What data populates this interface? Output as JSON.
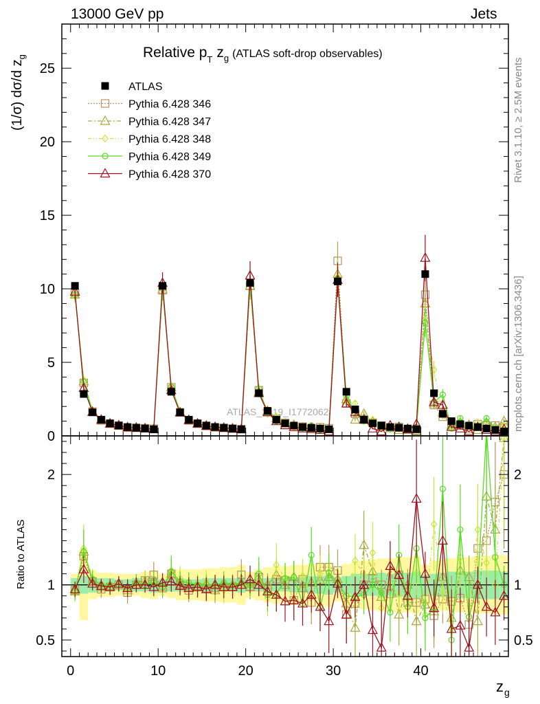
{
  "header": {
    "left": "13000 GeV pp",
    "right": "Jets"
  },
  "side_text": {
    "rivet": "Rivet 3.1.10, ≥ 2.5M events",
    "mcplots": "mcplots.cern.ch [arXiv:1306.3436]"
  },
  "chart_data": [
    {
      "type": "scatter",
      "panel": "main",
      "title_main": "Relative p",
      "title_sub": "T",
      "title_var": "z",
      "title_var_sub": "g",
      "title_rest": "(ATLAS soft-drop observables)",
      "ylabel": "(1/σ) dσ/d z",
      "ylabel_sub": "g",
      "watermark": "ATLAS_2019_I1772062",
      "xlim": [
        -1,
        50
      ],
      "ylim": [
        0,
        28
      ],
      "xticks": [
        "0",
        "10",
        "20",
        "30",
        "40"
      ],
      "yticks": [
        "0",
        "5",
        "10",
        "15",
        "20",
        "25"
      ],
      "legend_position": "top-left",
      "x": [
        0.5,
        1.5,
        2.5,
        3.5,
        4.5,
        5.5,
        6.5,
        7.5,
        8.5,
        9.5,
        10.5,
        11.5,
        12.5,
        13.5,
        14.5,
        15.5,
        16.5,
        17.5,
        18.5,
        19.5,
        20.5,
        21.5,
        22.5,
        23.5,
        24.5,
        25.5,
        26.5,
        27.5,
        28.5,
        29.5,
        30.5,
        31.5,
        32.5,
        33.5,
        34.5,
        35.5,
        36.5,
        37.5,
        38.5,
        39.5,
        40.5,
        41.5,
        42.5,
        43.5,
        44.5,
        45.5,
        46.5,
        47.5,
        48.5,
        49.5
      ],
      "series": [
        {
          "name": "ATLAS",
          "color": "#000000",
          "marker": "square-filled",
          "values": [
            10.2,
            2.85,
            1.6,
            1.1,
            0.85,
            0.7,
            0.6,
            0.55,
            0.5,
            0.45,
            10.2,
            3.0,
            1.6,
            1.1,
            0.85,
            0.7,
            0.6,
            0.55,
            0.5,
            0.45,
            10.4,
            2.9,
            1.7,
            1.1,
            0.85,
            0.7,
            0.6,
            0.55,
            0.5,
            0.45,
            10.5,
            3.0,
            1.8,
            1.1,
            0.85,
            0.7,
            0.6,
            0.55,
            0.5,
            0.45,
            11.0,
            2.9,
            1.5,
            1.0,
            0.8,
            0.7,
            0.6,
            0.5,
            0.4,
            0.3
          ]
        },
        {
          "name": "Pythia 6.428 346",
          "color": "#b8925a",
          "marker": "square-open",
          "values": [
            9.7,
            3.6,
            1.65,
            1.05,
            0.83,
            0.7,
            0.56,
            0.55,
            0.52,
            0.49,
            9.9,
            3.3,
            1.6,
            1.05,
            0.83,
            0.68,
            0.58,
            0.54,
            0.49,
            0.45,
            10.2,
            3.1,
            1.65,
            1.15,
            0.88,
            0.6,
            0.63,
            0.46,
            0.58,
            0.52,
            11.9,
            2.2,
            1.5,
            1.1,
            0.9,
            0.7,
            0.55,
            0.6,
            0.42,
            0.38,
            9.6,
            2.1,
            1.3,
            0.85,
            0.7,
            0.45,
            0.8,
            0.7,
            0.7,
            0.6
          ]
        },
        {
          "name": "Pythia 6.428 347",
          "color": "#a8a838",
          "marker": "triangle-open",
          "values": [
            9.6,
            3.7,
            1.65,
            1.08,
            0.84,
            0.71,
            0.57,
            0.56,
            0.52,
            0.47,
            9.95,
            3.3,
            1.62,
            1.08,
            0.84,
            0.71,
            0.57,
            0.55,
            0.5,
            0.46,
            10.2,
            3.0,
            1.7,
            1.2,
            0.85,
            0.75,
            0.58,
            0.56,
            0.52,
            0.48,
            11.0,
            2.5,
            1.1,
            1.5,
            0.95,
            0.62,
            0.7,
            0.4,
            0.5,
            0.3,
            9.0,
            2.2,
            1.6,
            0.7,
            0.9,
            0.75,
            0.4,
            0.9,
            0.6,
            1.0
          ]
        },
        {
          "name": "Pythia 6.428 348",
          "color": "#c8e63c",
          "marker": "diamond-open",
          "values": [
            9.5,
            3.8,
            1.7,
            1.08,
            0.84,
            0.7,
            0.58,
            0.55,
            0.52,
            0.46,
            10.0,
            3.4,
            1.7,
            1.12,
            0.86,
            0.72,
            0.6,
            0.52,
            0.5,
            0.45,
            10.3,
            3.0,
            1.5,
            1.3,
            0.9,
            0.6,
            0.65,
            0.5,
            0.55,
            0.5,
            10.8,
            2.3,
            2.2,
            1.2,
            1.1,
            0.55,
            0.6,
            0.5,
            0.4,
            0.5,
            8.0,
            4.5,
            1.4,
            0.6,
            1.0,
            0.5,
            0.9,
            0.6,
            0.4,
            0.7
          ]
        },
        {
          "name": "Pythia 6.428 349",
          "color": "#55dd22",
          "marker": "circle-open",
          "values": [
            9.6,
            3.7,
            1.68,
            1.1,
            0.85,
            0.7,
            0.58,
            0.56,
            0.5,
            0.46,
            10.0,
            3.35,
            1.65,
            1.12,
            0.85,
            0.7,
            0.6,
            0.56,
            0.5,
            0.46,
            10.4,
            3.2,
            1.55,
            1.0,
            0.9,
            0.75,
            0.5,
            0.7,
            0.4,
            0.5,
            10.7,
            2.7,
            1.6,
            1.0,
            0.85,
            0.65,
            0.45,
            0.7,
            0.4,
            0.6,
            7.7,
            2.3,
            2.8,
            0.5,
            1.2,
            0.5,
            0.6,
            1.2,
            0.5,
            0.3
          ]
        },
        {
          "name": "Pythia 6.428 370",
          "color": "#a01020",
          "marker": "triangle-open",
          "values": [
            9.8,
            3.25,
            1.62,
            1.09,
            0.83,
            0.71,
            0.58,
            0.55,
            0.5,
            0.44,
            10.4,
            3.1,
            1.58,
            1.07,
            0.83,
            0.67,
            0.6,
            0.54,
            0.49,
            0.45,
            10.9,
            2.9,
            1.6,
            1.0,
            0.72,
            0.6,
            0.5,
            0.5,
            0.4,
            0.3,
            10.6,
            2.2,
            1.6,
            1.1,
            0.5,
            0.3,
            0.7,
            0.6,
            0.45,
            0.8,
            12.1,
            2.3,
            2.1,
            0.6,
            0.5,
            0.3,
            0.6,
            0.4,
            0.3,
            0.45
          ]
        }
      ]
    },
    {
      "type": "scatter",
      "panel": "ratio",
      "ylabel": "Ratio to ATLAS",
      "xlabel": "z",
      "xlabel_sub": "g",
      "xlim": [
        -1,
        50
      ],
      "ylim": [
        0.35,
        2.35
      ],
      "xticks": [
        "0",
        "10",
        "20",
        "30",
        "40"
      ],
      "yticks": [
        "0.5",
        "1",
        "2"
      ],
      "band_inner_halfwidth": [
        0.06,
        0.08,
        0.07,
        0.06,
        0.06,
        0.05,
        0.05,
        0.06,
        0.06,
        0.07,
        0.05,
        0.06,
        0.06,
        0.05,
        0.05,
        0.06,
        0.06,
        0.06,
        0.06,
        0.07,
        0.05,
        0.06,
        0.06,
        0.06,
        0.06,
        0.07,
        0.07,
        0.08,
        0.08,
        0.09,
        0.07,
        0.08,
        0.1,
        0.1,
        0.1,
        0.11,
        0.1,
        0.11,
        0.11,
        0.12,
        0.09,
        0.1,
        0.11,
        0.12,
        0.12,
        0.12,
        0.13,
        0.13,
        0.13,
        0.12
      ],
      "band_outer_halfwidth": [
        0.1,
        0.32,
        0.13,
        0.11,
        0.11,
        0.1,
        0.1,
        0.1,
        0.12,
        0.13,
        0.1,
        0.12,
        0.14,
        0.14,
        0.14,
        0.15,
        0.15,
        0.16,
        0.16,
        0.18,
        0.12,
        0.14,
        0.16,
        0.17,
        0.17,
        0.18,
        0.18,
        0.19,
        0.2,
        0.2,
        0.15,
        0.19,
        0.21,
        0.22,
        0.23,
        0.24,
        0.24,
        0.25,
        0.25,
        0.26,
        0.18,
        0.22,
        0.23,
        0.24,
        0.25,
        0.25,
        0.26,
        0.26,
        0.27,
        0.27
      ],
      "series": [
        {
          "name": "Pythia 6.428 346",
          "values": [
            0.95,
            1.26,
            1.03,
            0.96,
            0.98,
            1.0,
            0.93,
            1.0,
            1.04,
            1.09,
            0.97,
            1.1,
            1.0,
            0.95,
            0.98,
            0.97,
            0.97,
            0.98,
            0.98,
            1.09,
            0.98,
            1.07,
            0.97,
            1.05,
            1.04,
            0.86,
            1.05,
            0.84,
            1.16,
            1.16,
            1.13,
            0.73,
            0.83,
            1.0,
            1.06,
            1.0,
            0.92,
            1.09,
            0.84,
            0.84,
            0.87,
            0.72,
            0.87,
            0.85,
            0.88,
            0.64,
            1.33,
            1.4,
            1.75,
            2.0
          ]
        },
        {
          "name": "Pythia 6.428 347",
          "values": [
            0.94,
            1.3,
            1.03,
            0.98,
            0.99,
            1.01,
            0.95,
            1.02,
            1.04,
            1.04,
            0.98,
            1.1,
            1.01,
            0.98,
            0.99,
            1.01,
            0.95,
            1.0,
            1.0,
            1.02,
            0.98,
            1.03,
            1.0,
            1.09,
            1.0,
            1.07,
            0.97,
            1.02,
            1.04,
            1.07,
            1.05,
            0.83,
            0.61,
            1.36,
            1.12,
            0.89,
            1.17,
            0.73,
            1.0,
            0.67,
            0.82,
            0.76,
            1.07,
            0.7,
            1.13,
            1.07,
            0.67,
            1.8,
            1.5,
            2.33
          ]
        },
        {
          "name": "Pythia 6.428 348",
          "values": [
            0.93,
            1.33,
            1.06,
            0.98,
            0.99,
            1.0,
            0.97,
            1.0,
            1.04,
            1.02,
            0.98,
            1.13,
            1.06,
            1.02,
            1.01,
            1.03,
            1.0,
            0.95,
            1.0,
            1.0,
            0.99,
            1.03,
            0.88,
            1.18,
            1.06,
            0.86,
            1.08,
            0.91,
            1.1,
            1.11,
            1.03,
            0.77,
            1.22,
            1.09,
            1.29,
            0.79,
            1.0,
            0.91,
            0.8,
            1.11,
            0.73,
            1.55,
            0.93,
            0.6,
            1.25,
            0.71,
            1.5,
            1.2,
            1.0,
            2.33
          ]
        },
        {
          "name": "Pythia 6.428 349",
          "values": [
            0.94,
            1.3,
            1.05,
            1.0,
            1.0,
            1.0,
            0.97,
            1.02,
            1.0,
            1.02,
            0.98,
            1.12,
            1.03,
            1.02,
            1.0,
            1.0,
            1.0,
            1.02,
            1.0,
            1.02,
            1.0,
            1.1,
            0.91,
            0.91,
            1.06,
            1.07,
            0.83,
            1.27,
            0.8,
            1.11,
            1.02,
            0.9,
            0.89,
            0.91,
            1.0,
            0.93,
            0.75,
            1.27,
            0.8,
            1.33,
            0.7,
            0.79,
            1.87,
            0.5,
            1.5,
            0.71,
            1.0,
            2.4,
            1.25,
            1.0
          ]
        },
        {
          "name": "Pythia 6.428 370",
          "values": [
            0.96,
            1.14,
            1.01,
            0.99,
            0.98,
            1.01,
            0.97,
            1.0,
            1.0,
            0.98,
            1.02,
            1.03,
            0.99,
            0.97,
            0.98,
            0.96,
            1.0,
            0.98,
            0.98,
            1.0,
            1.05,
            1.0,
            0.94,
            0.91,
            0.85,
            0.86,
            0.83,
            0.91,
            0.8,
            0.67,
            1.01,
            0.73,
            0.89,
            1.0,
            0.59,
            0.43,
            1.17,
            1.09,
            0.9,
            1.78,
            1.1,
            0.79,
            1.4,
            0.6,
            0.63,
            0.43,
            1.0,
            0.8,
            0.75,
            0.9
          ]
        }
      ]
    }
  ]
}
